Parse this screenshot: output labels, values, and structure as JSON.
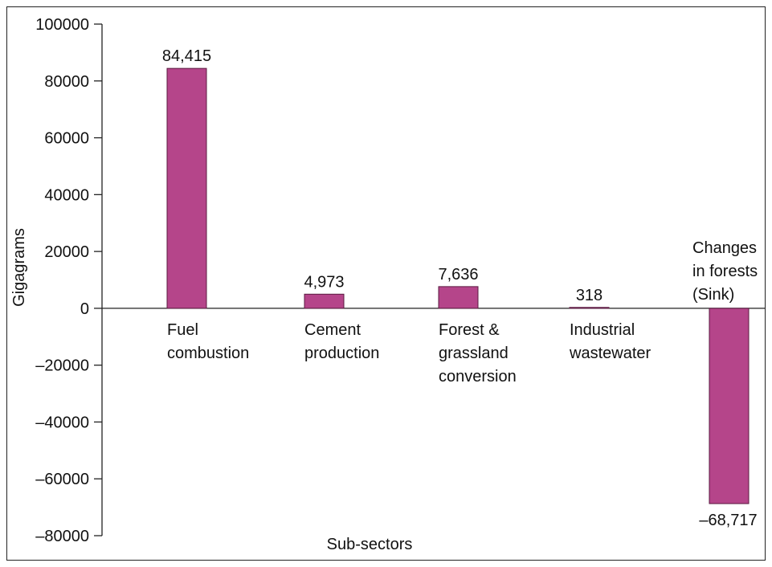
{
  "chart_data": {
    "type": "bar",
    "categories": [
      [
        "Fuel",
        "combustion"
      ],
      [
        "Cement",
        "production"
      ],
      [
        "Forest &",
        "grassland",
        "conversion"
      ],
      [
        "Industrial",
        "wastewater"
      ],
      [
        "Changes",
        "in forests",
        "(Sink)"
      ]
    ],
    "values": [
      84415,
      4973,
      7636,
      318,
      -68717
    ],
    "value_labels": [
      "84,415",
      "4,973",
      "7,636",
      "318",
      "–68,717"
    ],
    "xlabel": "Sub-sectors",
    "ylabel": "Gigagrams",
    "ylim": [
      -80000,
      100000
    ],
    "yticks": [
      100000,
      80000,
      60000,
      40000,
      20000,
      0,
      -20000,
      -40000,
      -60000,
      -80000
    ],
    "ytick_labels": [
      "100000",
      "80000",
      "60000",
      "40000",
      "20000",
      "0",
      "–20000",
      "–40000",
      "–60000",
      "–80000"
    ],
    "grid": false,
    "bar_color": "#b5458a",
    "bar_edge_color": "#5a1a40"
  }
}
